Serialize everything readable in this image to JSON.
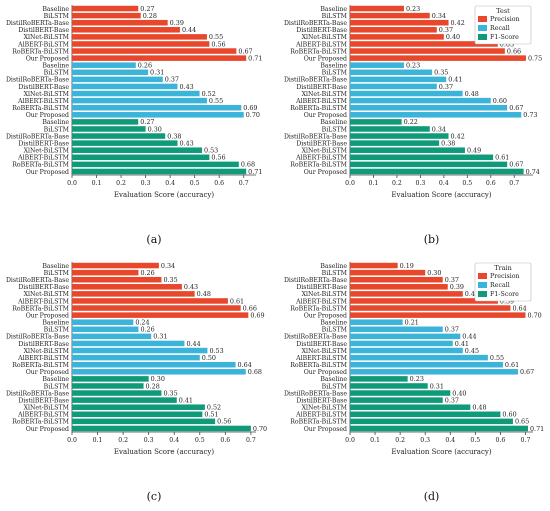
{
  "figure": {
    "panels": [
      {
        "label": "(a)",
        "chart_data": {
          "type": "bar",
          "orientation": "horizontal",
          "title": "",
          "xlabel": "Evaluation Score (accuracy)",
          "ylabel": "",
          "xlim": [
            0,
            0.75
          ],
          "xticks": [
            "0.0",
            "0.1",
            "0.2",
            "0.3",
            "0.4",
            "0.5",
            "0.6",
            "0.7"
          ],
          "categories": [
            "Baseline",
            "BiLSTM",
            "DistilRoBERTa-Base",
            "DistilBERT-Base",
            "XlNet-BiLSTM",
            "AlBERT-BiLSTM",
            "RoBERTa-BiLSTM",
            "Our Proposed"
          ],
          "legend": null,
          "series": [
            {
              "color": "#e8472c",
              "values": [
                0.27,
                0.28,
                0.39,
                0.44,
                0.55,
                0.56,
                0.67,
                0.71
              ]
            },
            {
              "color": "#3cb3d9",
              "values": [
                0.26,
                0.31,
                0.37,
                0.43,
                0.52,
                0.55,
                0.69,
                0.7
              ]
            },
            {
              "color": "#0f9a7a",
              "values": [
                0.27,
                0.3,
                0.38,
                0.43,
                0.53,
                0.56,
                0.68,
                0.71
              ]
            }
          ]
        }
      },
      {
        "label": "(b)",
        "chart_data": {
          "type": "bar",
          "orientation": "horizontal",
          "title": "",
          "xlabel": "Evaluation Score (accuracy)",
          "ylabel": "",
          "xlim": [
            0,
            0.78
          ],
          "xticks": [
            "0.0",
            "0.1",
            "0.2",
            "0.3",
            "0.4",
            "0.5",
            "0.6",
            "0.7"
          ],
          "categories": [
            "Baseline",
            "BiLSTM",
            "DistilRoBERTa-Base",
            "DistilBERT-Base",
            "XlNet-BiLSTM",
            "AlBERT-BiLSTM",
            "RoBERTa-BiLSTM",
            "Our Proposed"
          ],
          "legend": {
            "title": "Test",
            "position": "top-right"
          },
          "series": [
            {
              "name": "Precision",
              "color": "#e8472c",
              "values": [
                0.23,
                0.34,
                0.42,
                0.37,
                0.4,
                0.63,
                0.66,
                0.75
              ]
            },
            {
              "name": "Recall",
              "color": "#3cb3d9",
              "values": [
                0.23,
                0.35,
                0.41,
                0.37,
                0.48,
                0.6,
                0.67,
                0.73
              ]
            },
            {
              "name": "F1-Score",
              "color": "#0f9a7a",
              "values": [
                0.22,
                0.34,
                0.42,
                0.38,
                0.49,
                0.61,
                0.67,
                0.74
              ]
            }
          ]
        }
      },
      {
        "label": "(c)",
        "chart_data": {
          "type": "bar",
          "orientation": "horizontal",
          "title": "",
          "xlabel": "Evaluation Score (accuracy)",
          "ylabel": "",
          "xlim": [
            0,
            0.72
          ],
          "xticks": [
            "0.0",
            "0.1",
            "0.2",
            "0.3",
            "0.4",
            "0.5",
            "0.6",
            "0.7"
          ],
          "categories": [
            "Baseline",
            "BiLSTM",
            "DistilRoBERTa-Base",
            "DistilBERT-Base",
            "XlNet-BiLSTM",
            "AlBERT-BiLSTM",
            "RoBERTa-BiLSTM",
            "Our Proposed"
          ],
          "legend": null,
          "series": [
            {
              "color": "#e8472c",
              "values": [
                0.34,
                0.26,
                0.35,
                0.43,
                0.48,
                0.61,
                0.66,
                0.69
              ]
            },
            {
              "color": "#3cb3d9",
              "values": [
                0.24,
                0.26,
                0.31,
                0.44,
                0.53,
                0.5,
                0.64,
                0.68
              ]
            },
            {
              "color": "#0f9a7a",
              "values": [
                0.3,
                0.28,
                0.35,
                0.41,
                0.52,
                0.51,
                0.56,
                0.7
              ]
            }
          ]
        }
      },
      {
        "label": "(d)",
        "chart_data": {
          "type": "bar",
          "orientation": "horizontal",
          "title": "",
          "xlabel": "Evaluation Score (accuracy)",
          "ylabel": "",
          "xlim": [
            0,
            0.73
          ],
          "xticks": [
            "0.0",
            "0.1",
            "0.2",
            "0.3",
            "0.4",
            "0.5",
            "0.6",
            "0.7"
          ],
          "categories": [
            "Baseline",
            "BiLSTM",
            "DistilRoBERTa-Base",
            "DistilBERT-Base",
            "XlNet-BiLSTM",
            "AlBERT-BiLSTM",
            "RoBERTa-BiLSTM",
            "Our Proposed"
          ],
          "legend": {
            "title": "Train",
            "position": "top-right"
          },
          "series": [
            {
              "name": "Precision",
              "color": "#e8472c",
              "values": [
                0.19,
                0.3,
                0.37,
                0.39,
                0.45,
                0.59,
                0.64,
                0.7
              ]
            },
            {
              "name": "Recall",
              "color": "#3cb3d9",
              "values": [
                0.21,
                0.37,
                0.44,
                0.41,
                0.45,
                0.55,
                0.61,
                0.67
              ]
            },
            {
              "name": "F1-Score",
              "color": "#0f9a7a",
              "values": [
                0.23,
                0.31,
                0.4,
                0.37,
                0.48,
                0.6,
                0.65,
                0.71
              ]
            }
          ]
        }
      }
    ]
  }
}
